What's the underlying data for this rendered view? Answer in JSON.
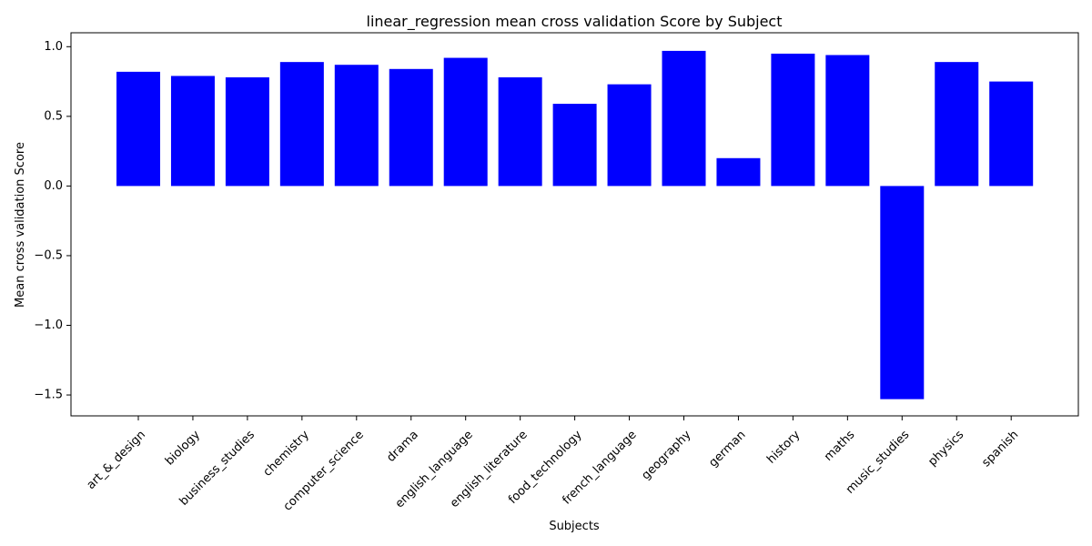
{
  "chart_data": {
    "type": "bar",
    "title": "linear_regression mean cross validation Score by Subject",
    "xlabel": "Subjects",
    "ylabel": "Mean cross validation Score",
    "categories": [
      "art_&_design",
      "biology",
      "business_studies",
      "chemistry",
      "computer_science",
      "drama",
      "english_language",
      "english_literature",
      "food_technology",
      "french_language",
      "geography",
      "german",
      "history",
      "maths",
      "music_studies",
      "physics",
      "spanish"
    ],
    "values": [
      0.82,
      0.79,
      0.78,
      0.89,
      0.87,
      0.84,
      0.92,
      0.78,
      0.59,
      0.73,
      0.97,
      0.2,
      0.95,
      0.94,
      -1.53,
      0.89,
      0.75
    ],
    "ylim": [
      -1.65,
      1.1
    ],
    "yticks": [
      -1.5,
      -1.0,
      -0.5,
      0.0,
      0.5,
      1.0
    ],
    "ytick_labels": [
      "−1.5",
      "−1.0",
      "−0.5",
      "0.0",
      "0.5",
      "1.0"
    ],
    "bar_color": "#0000ff",
    "grid": false,
    "legend": "none"
  }
}
